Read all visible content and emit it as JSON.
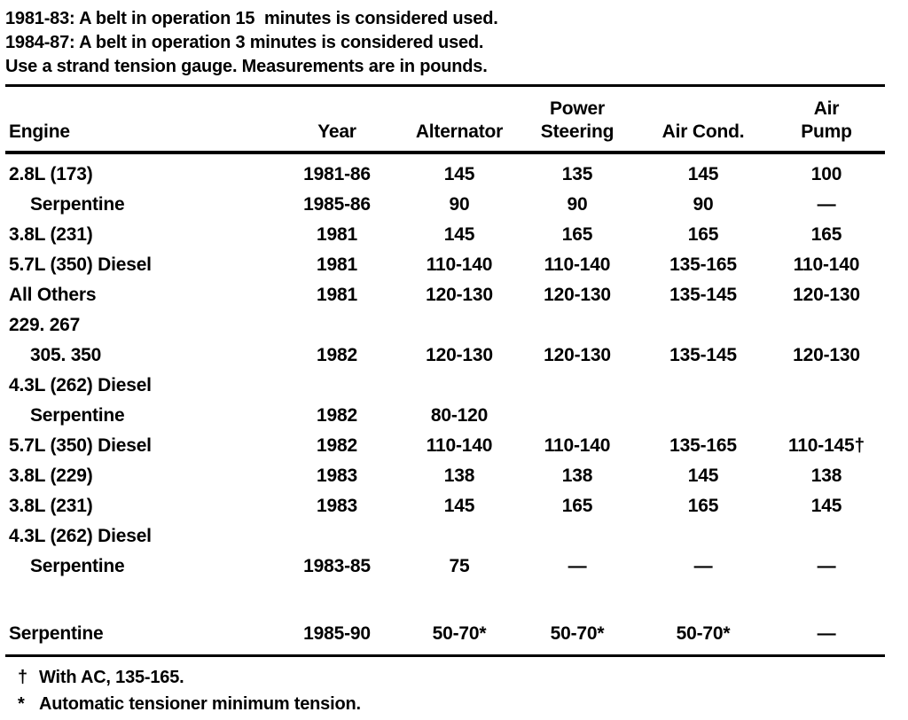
{
  "page": {
    "background": "#ffffff",
    "text_color": "#000000"
  },
  "notes": [
    "1981-83: A belt in operation 15  minutes is considered used.",
    "1984-87: A belt in operation 3 minutes is considered used.",
    "Use a strand tension gauge. Measurements are in pounds."
  ],
  "table": {
    "headers": [
      {
        "top": "",
        "bottom": "Engine"
      },
      {
        "top": "",
        "bottom": "Year"
      },
      {
        "top": "",
        "bottom": "Alternator"
      },
      {
        "top": "Power",
        "bottom": "Steering"
      },
      {
        "top": "",
        "bottom": "Air Cond."
      },
      {
        "top": "Air",
        "bottom": "Pump"
      }
    ],
    "rows": [
      {
        "engine": "2.8L (173)",
        "indent": false,
        "year": "1981-86",
        "values": [
          "145",
          "135",
          "145",
          "100"
        ]
      },
      {
        "engine": "Serpentine",
        "indent": true,
        "year": "1985-86",
        "values": [
          "90",
          "90",
          "90",
          "—"
        ]
      },
      {
        "engine": "3.8L (231)",
        "indent": false,
        "year": "1981",
        "values": [
          "145",
          "165",
          "165",
          "165"
        ]
      },
      {
        "engine": "5.7L (350) Diesel",
        "indent": false,
        "year": "1981",
        "values": [
          "110-140",
          "110-140",
          "135-165",
          "110-140"
        ]
      },
      {
        "engine": "All Others",
        "indent": false,
        "year": "1981",
        "values": [
          "120-130",
          "120-130",
          "135-145",
          "120-130"
        ]
      },
      {
        "engine": "229. 267",
        "indent": false,
        "year": "",
        "values": [
          "",
          "",
          "",
          ""
        ]
      },
      {
        "engine": "305. 350",
        "indent": true,
        "year": "1982",
        "values": [
          "120-130",
          "120-130",
          "135-145",
          "120-130"
        ]
      },
      {
        "engine": "4.3L (262) Diesel",
        "indent": false,
        "year": "",
        "values": [
          "",
          "",
          "",
          ""
        ]
      },
      {
        "engine": "Serpentine",
        "indent": true,
        "year": "1982",
        "values": [
          "80-120",
          "",
          "",
          ""
        ]
      },
      {
        "engine": "5.7L (350) Diesel",
        "indent": false,
        "year": "1982",
        "values": [
          "110-140",
          "110-140",
          "135-165",
          "110-145†"
        ]
      },
      {
        "engine": "3.8L (229)",
        "indent": false,
        "year": "1983",
        "values": [
          "138",
          "138",
          "145",
          "138"
        ]
      },
      {
        "engine": "3.8L (231)",
        "indent": false,
        "year": "1983",
        "values": [
          "145",
          "165",
          "165",
          "145"
        ]
      },
      {
        "engine": "4.3L (262) Diesel",
        "indent": false,
        "year": "",
        "values": [
          "",
          "",
          "",
          ""
        ]
      },
      {
        "engine": "Serpentine",
        "indent": true,
        "year": "1983-85",
        "values": [
          "75",
          "—",
          "—",
          "—"
        ]
      },
      {
        "spacer": true
      },
      {
        "engine": "Serpentine",
        "indent": false,
        "year": "1985-90",
        "values": [
          "50-70*",
          "50-70*",
          "50-70*",
          "—"
        ]
      }
    ]
  },
  "footnotes": [
    {
      "symbol": "†",
      "text": "With AC, 135-165."
    },
    {
      "symbol": "*",
      "text": "Automatic tensioner minimum tension."
    }
  ]
}
